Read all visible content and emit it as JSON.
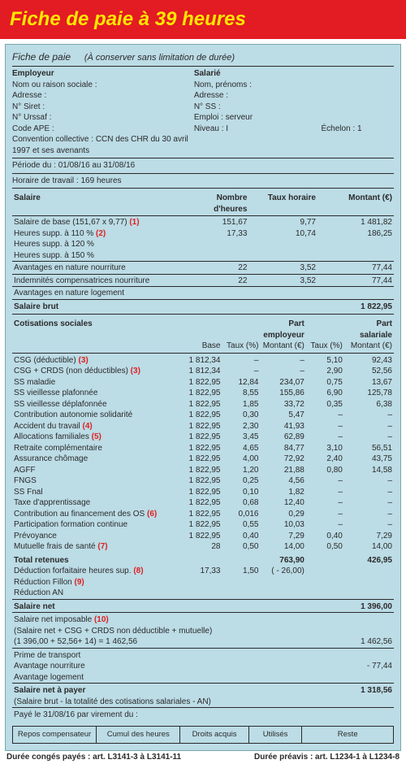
{
  "banner": {
    "title": "Fiche de paie à 39 heures"
  },
  "titleline": {
    "t1": "Fiche de paie",
    "t2": "(À conserver sans limitation de durée)"
  },
  "employer": {
    "head": "Employeur",
    "fields": [
      "Nom ou raison sociale :",
      "Adresse :",
      "N° Siret :",
      "N° Urssaf :",
      "Code APE :"
    ],
    "ccn": "Convention collective : CCN des CHR du 30 avril 1997 et ses avenants"
  },
  "employee": {
    "head": "Salarié",
    "fields": [
      "Nom, prénoms :",
      "Adresse :",
      "N° SS :",
      "Emploi : serveur"
    ],
    "niveau": "Niveau : I",
    "echelon": "Échelon : 1"
  },
  "periods": {
    "p1": "Période du : 01/08/16 au 31/08/16",
    "p2": "Horaire de travail : 169 heures"
  },
  "salary": {
    "headers": [
      "Salaire",
      "Nombre d'heures",
      "Taux horaire",
      "Montant (€)"
    ],
    "rows": [
      {
        "label": "Salaire de base (151,67 x 9,77)",
        "ref": "(1)",
        "h": "151,67",
        "t": "9,77",
        "m": "1 481,82",
        "div": true
      },
      {
        "label": "Heures supp. à 110 %",
        "ref": "(2)",
        "h": "17,33",
        "t": "10,74",
        "m": "186,25"
      },
      {
        "label": "Heures supp. à 120 %"
      },
      {
        "label": "Heures supp. à 150 %"
      },
      {
        "label": "Avantages en nature nourriture",
        "h": "22",
        "t": "3,52",
        "m": "77,44",
        "div": true
      },
      {
        "label": "Indemnités compensatrices nourriture",
        "h": "22",
        "t": "3,52",
        "m": "77,44",
        "div": true
      },
      {
        "label": "Avantages en nature logement",
        "div": true
      }
    ],
    "brut": {
      "label": "Salaire brut",
      "m": "1 822,95"
    }
  },
  "cot": {
    "head": {
      "c1": "Cotisations sociales",
      "emp": "Part employeur",
      "sal": "Part salariale"
    },
    "sub": {
      "base": "Base",
      "taux": "Taux (%)",
      "mont": "Montant (€)"
    },
    "rows": [
      {
        "l": "CSG (déductible)",
        "ref": "(3)",
        "b": "1 812,34",
        "te": "–",
        "me": "–",
        "ts": "5,10",
        "ms": "92,43"
      },
      {
        "l": "CSG + CRDS (non déductibles)",
        "ref": "(3)",
        "b": "1 812,34",
        "te": "–",
        "me": "–",
        "ts": "2,90",
        "ms": "52,56"
      },
      {
        "l": "SS maladie",
        "b": "1 822,95",
        "te": "12,84",
        "me": "234,07",
        "ts": "0,75",
        "ms": "13,67"
      },
      {
        "l": "SS vieillesse plafonnée",
        "b": "1 822,95",
        "te": "8,55",
        "me": "155,86",
        "ts": "6,90",
        "ms": "125,78"
      },
      {
        "l": "SS vieillesse déplafonnée",
        "b": "1 822,95",
        "te": "1,85",
        "me": "33,72",
        "ts": "0,35",
        "ms": "6,38"
      },
      {
        "l": "Contribution autonomie solidarité",
        "b": "1 822,95",
        "te": "0,30",
        "me": "5,47",
        "ts": "–",
        "ms": "–"
      },
      {
        "l": "Accident du travail",
        "ref": "(4)",
        "b": "1 822,95",
        "te": "2,30",
        "me": "41,93",
        "ts": "–",
        "ms": "–"
      },
      {
        "l": "Allocations familiales",
        "ref": "(5)",
        "b": "1 822,95",
        "te": "3,45",
        "me": "62,89",
        "ts": "–",
        "ms": "–"
      },
      {
        "l": "Retraite complémentaire",
        "b": "1 822,95",
        "te": "4,65",
        "me": "84,77",
        "ts": "3,10",
        "ms": "56,51"
      },
      {
        "l": "Assurance chômage",
        "b": "1 822,95",
        "te": "4,00",
        "me": "72,92",
        "ts": "2,40",
        "ms": "43,75"
      },
      {
        "l": "AGFF",
        "b": "1 822,95",
        "te": "1,20",
        "me": "21,88",
        "ts": "0,80",
        "ms": "14,58"
      },
      {
        "l": "FNGS",
        "b": "1 822,95",
        "te": "0,25",
        "me": "4,56",
        "ts": "–",
        "ms": "–"
      },
      {
        "l": "SS Fnal",
        "b": "1 822,95",
        "te": "0,10",
        "me": "1,82",
        "ts": "–",
        "ms": "–"
      },
      {
        "l": "Taxe d'apprentissage",
        "b": "1 822,95",
        "te": "0,68",
        "me": "12,40",
        "ts": "–",
        "ms": "–"
      },
      {
        "l": "Contribution au financement des OS",
        "ref": "(6)",
        "b": "1 822,95",
        "te": "0,016",
        "me": "0,29",
        "ts": "–",
        "ms": "–"
      },
      {
        "l": "Participation formation continue",
        "b": "1 822,95",
        "te": "0,55",
        "me": "10,03",
        "ts": "–",
        "ms": "–"
      },
      {
        "l": "Prévoyance",
        "b": "1 822,95",
        "te": "0,40",
        "me": "7,29",
        "ts": "0,40",
        "ms": "7,29"
      },
      {
        "l": "Mutuelle frais de santé",
        "ref": "(7)",
        "b": "28",
        "te": "0,50",
        "me": "14,00",
        "ts": "0,50",
        "ms": "14,00"
      }
    ],
    "totals": {
      "l": "Total retenues",
      "me": "763,90",
      "ms": "426,95"
    },
    "deductions": [
      {
        "l": "Déduction forfaitaire heures sup.",
        "ref": "(8)",
        "b": "17,33",
        "te": "1,50",
        "me": "( - 26,00)"
      },
      {
        "l": "Réduction Fillon",
        "ref": "(9)"
      },
      {
        "l": "Réduction AN"
      }
    ],
    "net": {
      "l": "Salaire net",
      "m": "1 396,00"
    },
    "imposable": {
      "l1": "Salaire net imposable",
      "ref": "(10)",
      "l2": "(Salaire net + CSG + CRDS non déductible + mutuelle)",
      "l3": "(1 396,00 + 52,56+ 14) = 1 462,56",
      "m": "1 462,56"
    },
    "extras": [
      {
        "l": "Prime de transport"
      },
      {
        "l": "Avantage nourriture",
        "m": "- 77,44"
      },
      {
        "l": "Avantage logement"
      }
    ],
    "netpay": {
      "l": "Salaire net à payer",
      "m": "1 318,56"
    },
    "calc": "(Salaire brut - la totalité des cotisations salariales - AN)",
    "paid": "Payé le 31/08/16 par virement du :"
  },
  "footer": {
    "cells": [
      "Repos compensateur",
      "Cumul des heures",
      "Droits acquis",
      "Utilisés",
      "Reste"
    ],
    "note1": "Durée congés payés : art. L3141-3 à L3141-11",
    "note2": "Durée préavis : art. L1234-1 à L1234-8"
  }
}
